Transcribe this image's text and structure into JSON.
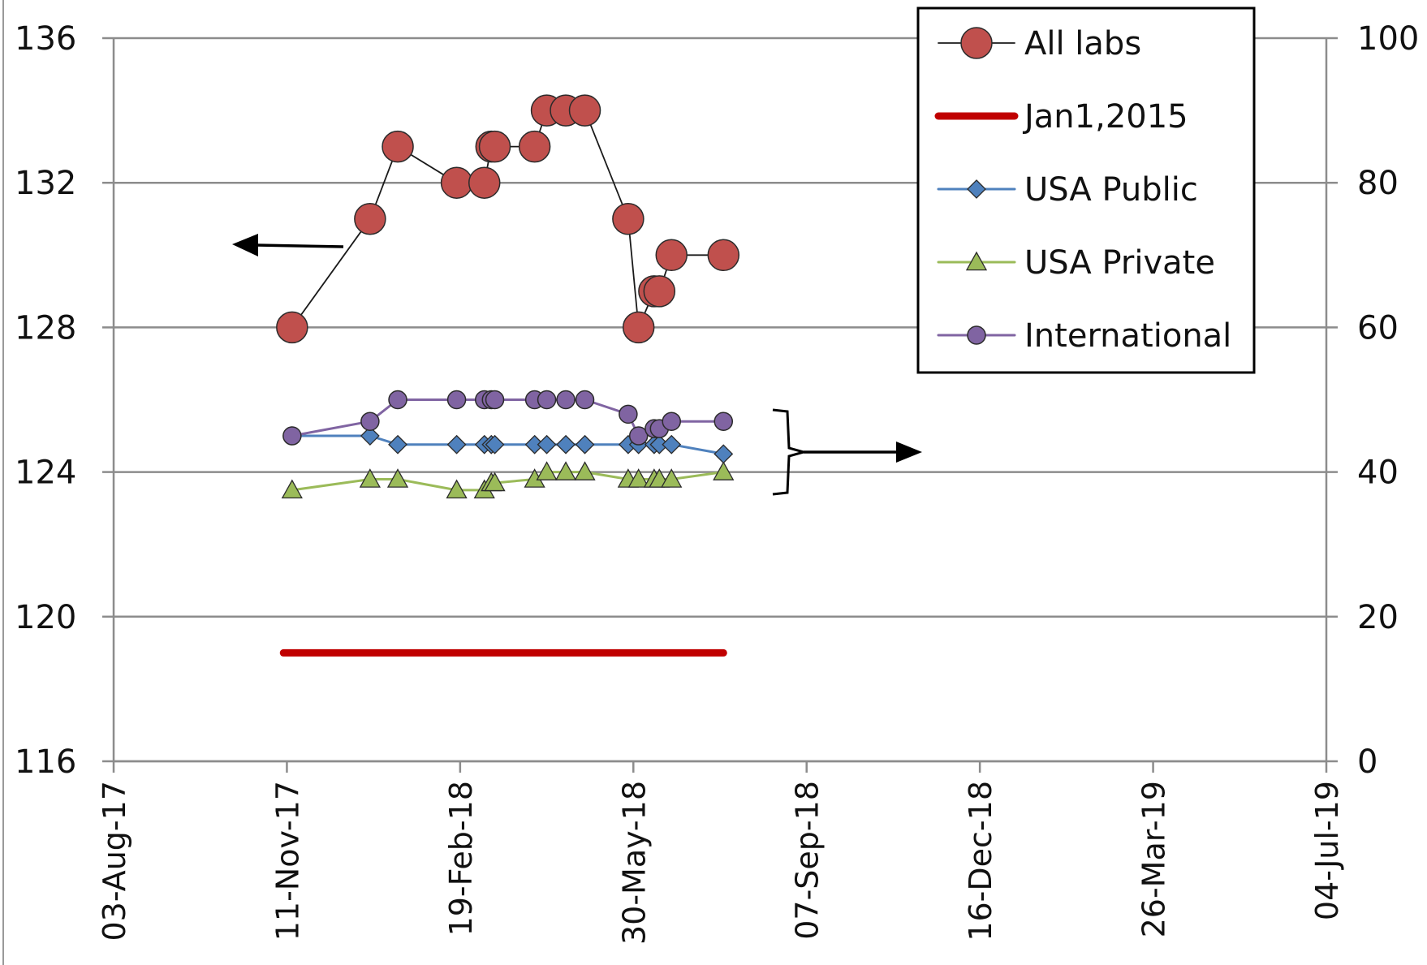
{
  "chart_data": {
    "type": "line",
    "title": "",
    "xlabel": "",
    "ylabel": "",
    "y2label": "",
    "x_axis": {
      "min": "2017-08-03",
      "max": "2019-07-04",
      "tick_labels": [
        "03-Aug-17",
        "11-Nov-17",
        "19-Feb-18",
        "30-May-18",
        "07-Sep-18",
        "16-Dec-18",
        "26-Mar-19",
        "04-Jul-19"
      ]
    },
    "y_axis_left": {
      "min": 116,
      "max": 136,
      "tick_labels": [
        "116",
        "120",
        "124",
        "128",
        "132",
        "136"
      ]
    },
    "y_axis_right": {
      "min": 0,
      "max": 100,
      "tick_labels": [
        "0",
        "20",
        "40",
        "60",
        "80",
        "100"
      ]
    },
    "grid": true,
    "legend_position": "top-right",
    "series": [
      {
        "name": "All labs",
        "axis": "left",
        "color": "#c0504d",
        "marker": "circle",
        "points": [
          [
            "2017-11-14",
            128
          ],
          [
            "2017-12-29",
            131
          ],
          [
            "2018-01-14",
            133
          ],
          [
            "2018-02-17",
            132
          ],
          [
            "2018-03-05",
            132
          ],
          [
            "2018-03-09",
            133
          ],
          [
            "2018-03-11",
            133
          ],
          [
            "2018-04-03",
            133
          ],
          [
            "2018-04-10",
            134
          ],
          [
            "2018-04-21",
            134
          ],
          [
            "2018-05-02",
            134
          ],
          [
            "2018-05-27",
            131
          ],
          [
            "2018-06-02",
            128
          ],
          [
            "2018-06-11",
            129
          ],
          [
            "2018-06-14",
            129
          ],
          [
            "2018-06-21",
            130
          ],
          [
            "2018-07-21",
            130
          ]
        ]
      },
      {
        "name": "Jan1,2015",
        "axis": "left",
        "color": "#c00000",
        "marker": "none",
        "points": [
          [
            "2017-11-09",
            119
          ],
          [
            "2018-07-21",
            119
          ]
        ]
      },
      {
        "name": "USA Public",
        "axis": "right",
        "color": "#4f81bd",
        "marker": "diamond",
        "points": [
          [
            "2017-11-14",
            45
          ],
          [
            "2017-12-29",
            45
          ],
          [
            "2018-01-14",
            43.8
          ],
          [
            "2018-02-17",
            43.8
          ],
          [
            "2018-03-05",
            43.8
          ],
          [
            "2018-03-09",
            43.8
          ],
          [
            "2018-03-11",
            43.8
          ],
          [
            "2018-04-03",
            43.8
          ],
          [
            "2018-04-10",
            43.8
          ],
          [
            "2018-04-21",
            43.8
          ],
          [
            "2018-05-02",
            43.8
          ],
          [
            "2018-05-27",
            43.8
          ],
          [
            "2018-06-02",
            43.8
          ],
          [
            "2018-06-11",
            43.8
          ],
          [
            "2018-06-14",
            43.8
          ],
          [
            "2018-06-21",
            43.8
          ],
          [
            "2018-07-21",
            42.5
          ]
        ]
      },
      {
        "name": "USA Private",
        "axis": "right",
        "color": "#9bbb59",
        "marker": "triangle",
        "points": [
          [
            "2017-11-14",
            37.5
          ],
          [
            "2017-12-29",
            39
          ],
          [
            "2018-01-14",
            39
          ],
          [
            "2018-02-17",
            37.5
          ],
          [
            "2018-03-05",
            37.5
          ],
          [
            "2018-03-09",
            38.5
          ],
          [
            "2018-03-11",
            38.5
          ],
          [
            "2018-04-03",
            39
          ],
          [
            "2018-04-10",
            40
          ],
          [
            "2018-04-21",
            40
          ],
          [
            "2018-05-02",
            40
          ],
          [
            "2018-05-27",
            39
          ],
          [
            "2018-06-02",
            39
          ],
          [
            "2018-06-11",
            39
          ],
          [
            "2018-06-14",
            39
          ],
          [
            "2018-06-21",
            39
          ],
          [
            "2018-07-21",
            40
          ]
        ]
      },
      {
        "name": "International",
        "axis": "right",
        "color": "#8064a2",
        "marker": "circle",
        "points": [
          [
            "2017-11-14",
            45
          ],
          [
            "2017-12-29",
            47
          ],
          [
            "2018-01-14",
            50
          ],
          [
            "2018-02-17",
            50
          ],
          [
            "2018-03-05",
            50
          ],
          [
            "2018-03-09",
            50
          ],
          [
            "2018-03-11",
            50
          ],
          [
            "2018-04-03",
            50
          ],
          [
            "2018-04-10",
            50
          ],
          [
            "2018-04-21",
            50
          ],
          [
            "2018-05-02",
            50
          ],
          [
            "2018-05-27",
            48
          ],
          [
            "2018-06-02",
            45
          ],
          [
            "2018-06-11",
            46
          ],
          [
            "2018-06-14",
            46
          ],
          [
            "2018-06-21",
            47
          ],
          [
            "2018-07-21",
            47
          ]
        ]
      }
    ],
    "annotations": [
      {
        "kind": "arrow",
        "direction": "left",
        "refers_to": [
          "All labs"
        ]
      },
      {
        "kind": "bracket-arrow",
        "direction": "right",
        "refers_to": [
          "International",
          "USA Public",
          "USA Private"
        ]
      }
    ]
  }
}
